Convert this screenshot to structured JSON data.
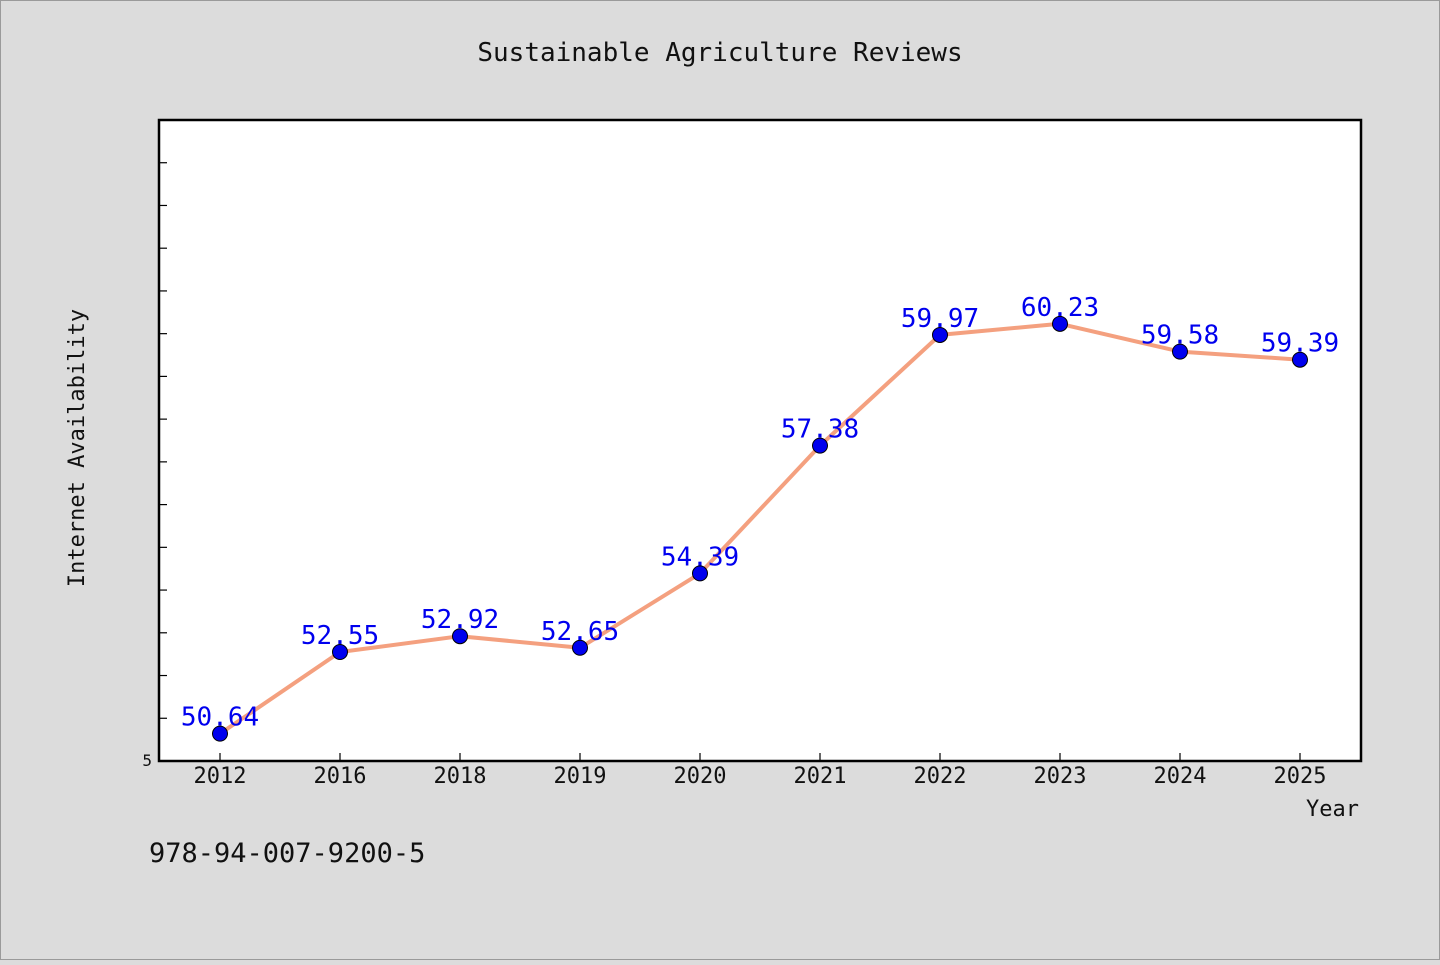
{
  "chart_data": {
    "type": "line",
    "title": "Sustainable Agriculture Reviews",
    "xlabel": "Year",
    "ylabel": "Internet Availability",
    "categories": [
      "2012",
      "2016",
      "2018",
      "2019",
      "2020",
      "2021",
      "2022",
      "2023",
      "2024",
      "2025"
    ],
    "series": [
      {
        "values": [
          50.64,
          52.55,
          52.92,
          52.65,
          54.39,
          57.38,
          59.97,
          60.23,
          59.58,
          59.39
        ],
        "value_labels": [
          "50.64",
          "52.55",
          "52.92",
          "52.65",
          "54.39",
          "57.38",
          "59.97",
          "60.23",
          "59.58",
          "59.39"
        ],
        "line_color": "#f4a07f",
        "marker_color": "#0000ee"
      }
    ],
    "ylim": [
      50,
      65
    ],
    "y_tick_labels_shown": [
      "5"
    ],
    "grid": false,
    "legend": "none"
  },
  "footer_text": "978-94-007-9200-5",
  "colors": {
    "background": "#dcdcdc",
    "plot_background": "#ffffff",
    "label_color": "#0000ee",
    "text": "#111111"
  }
}
